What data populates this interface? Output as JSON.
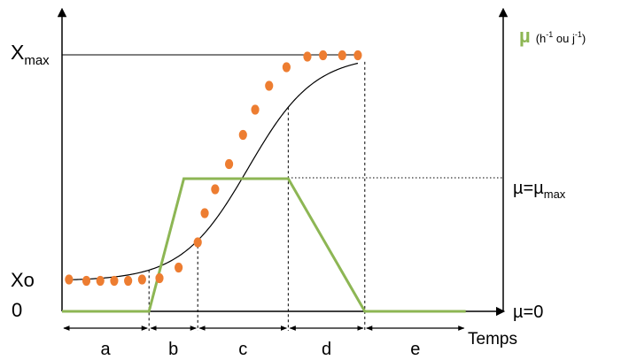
{
  "chart_data": {
    "type": "line",
    "y_labels": {
      "xmax_main": "X",
      "xmax_sub": "max",
      "xo": "Xo",
      "zero": "0"
    },
    "right_labels": {
      "mu_symbol": "µ",
      "mu_unit_open": "(h",
      "mu_unit_exp1": "-1",
      "mu_unit_mid": " ou j",
      "mu_unit_exp2": "-1",
      "mu_unit_close": ")",
      "mu_max_main": "µ=µ",
      "mu_max_sub": "max",
      "mu_zero": "µ=0"
    },
    "xlabel": "Temps",
    "phases": [
      "a",
      "b",
      "c",
      "d",
      "e"
    ],
    "colors": {
      "growth_curve": "#000000",
      "points": "#ED7D31",
      "mu_curve": "#8DB654",
      "axis": "#000000"
    },
    "biomass_points": [
      [
        0.2,
        0.12
      ],
      [
        0.7,
        0.115
      ],
      [
        1.1,
        0.115
      ],
      [
        1.5,
        0.115
      ],
      [
        1.9,
        0.115
      ],
      [
        2.3,
        0.12
      ],
      [
        2.8,
        0.125
      ],
      [
        3.35,
        0.165
      ],
      [
        3.9,
        0.26
      ],
      [
        4.1,
        0.37
      ],
      [
        4.4,
        0.46
      ],
      [
        4.8,
        0.555
      ],
      [
        5.2,
        0.665
      ],
      [
        5.55,
        0.76
      ],
      [
        5.95,
        0.85
      ],
      [
        6.45,
        0.92
      ],
      [
        7.05,
        0.96
      ],
      [
        7.5,
        0.965
      ],
      [
        8.05,
        0.965
      ],
      [
        8.5,
        0.965
      ]
    ],
    "phase_boundaries": [
      2.5,
      3.9,
      6.5,
      8.7
    ],
    "mu_profile": [
      [
        0.0,
        0.0
      ],
      [
        2.5,
        0.0
      ],
      [
        3.5,
        0.5
      ],
      [
        4.1,
        0.5
      ],
      [
        6.5,
        0.5
      ],
      [
        8.7,
        0.0
      ],
      [
        11.6,
        0.0
      ]
    ],
    "xo_level": 0.115,
    "xmax_level": 0.965,
    "mu_max_level": 0.5,
    "ylim": [
      0,
      1
    ],
    "xlim": [
      0,
      12.6
    ]
  }
}
